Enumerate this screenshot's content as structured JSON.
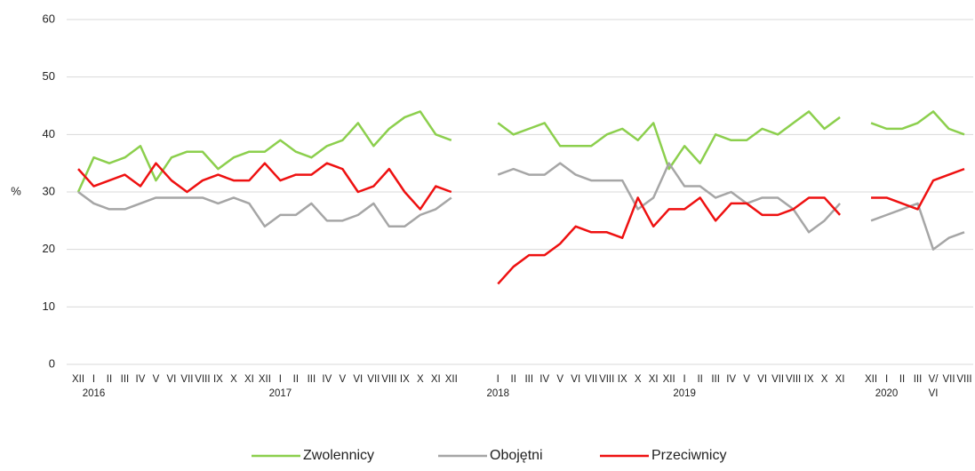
{
  "chart_data": {
    "type": "line",
    "y_label": "%",
    "categories": [
      "XII",
      "I",
      "II",
      "III",
      "IV",
      "V",
      "VI",
      "VII",
      "VIII",
      "IX",
      "X",
      "XI",
      "XII",
      "I",
      "II",
      "III",
      "IV",
      "V",
      "VI",
      "VII",
      "VIII",
      "IX",
      "X",
      "XI",
      "XII",
      null,
      null,
      "I",
      "II",
      "III",
      "IV",
      "V",
      "VI",
      "VII",
      "VIII",
      "IX",
      "X",
      "XI",
      "XII",
      "I",
      "II",
      "III",
      "IV",
      "V",
      "VI",
      "VII",
      "VIII",
      "IX",
      "X",
      "XI",
      null,
      "XII",
      "I",
      "II",
      "III",
      "V/",
      "VII",
      "VIII"
    ],
    "category_second_row": [
      null,
      "2016",
      null,
      null,
      null,
      null,
      null,
      null,
      null,
      null,
      null,
      null,
      null,
      "2017",
      null,
      null,
      null,
      null,
      null,
      null,
      null,
      null,
      null,
      null,
      null,
      null,
      null,
      "2018",
      null,
      null,
      null,
      null,
      null,
      null,
      null,
      null,
      null,
      null,
      null,
      "2019",
      null,
      null,
      null,
      null,
      null,
      null,
      null,
      null,
      null,
      null,
      null,
      null,
      "2020",
      null,
      null,
      "VI",
      null,
      null
    ],
    "series": [
      {
        "name": "Zwolennicy",
        "color": "#8ccf4d",
        "values": [
          30,
          36,
          35,
          36,
          38,
          32,
          36,
          37,
          37,
          34,
          36,
          37,
          37,
          39,
          37,
          36,
          38,
          39,
          42,
          38,
          41,
          43,
          44,
          40,
          39,
          null,
          null,
          42,
          40,
          41,
          42,
          38,
          38,
          38,
          40,
          41,
          39,
          42,
          34,
          38,
          35,
          40,
          39,
          39,
          41,
          40,
          42,
          44,
          41,
          43,
          null,
          42,
          41,
          41,
          42,
          44,
          41,
          40
        ]
      },
      {
        "name": "Obojętni",
        "color": "#a6a6a6",
        "values": [
          30,
          28,
          27,
          27,
          28,
          29,
          29,
          29,
          29,
          28,
          29,
          28,
          24,
          26,
          26,
          28,
          25,
          25,
          26,
          28,
          24,
          24,
          26,
          27,
          29,
          null,
          null,
          33,
          34,
          33,
          33,
          35,
          33,
          32,
          32,
          32,
          27,
          29,
          35,
          31,
          31,
          29,
          30,
          28,
          29,
          29,
          27,
          23,
          25,
          28,
          null,
          25,
          26,
          27,
          28,
          20,
          22,
          23
        ]
      },
      {
        "name": "Przeciwnicy",
        "color": "#ee1111",
        "values": [
          34,
          31,
          32,
          33,
          31,
          35,
          32,
          30,
          32,
          33,
          32,
          32,
          35,
          32,
          33,
          33,
          35,
          34,
          30,
          31,
          34,
          30,
          27,
          31,
          30,
          null,
          null,
          14,
          17,
          19,
          19,
          21,
          24,
          23,
          23,
          22,
          29,
          24,
          27,
          27,
          29,
          25,
          28,
          28,
          26,
          26,
          27,
          29,
          29,
          26,
          null,
          29,
          29,
          28,
          27,
          32,
          33,
          34
        ]
      }
    ],
    "ylim": [
      0,
      60
    ],
    "yticks": [
      0,
      10,
      20,
      30,
      40,
      50,
      60
    ],
    "grid": true,
    "legend": "bottom"
  }
}
